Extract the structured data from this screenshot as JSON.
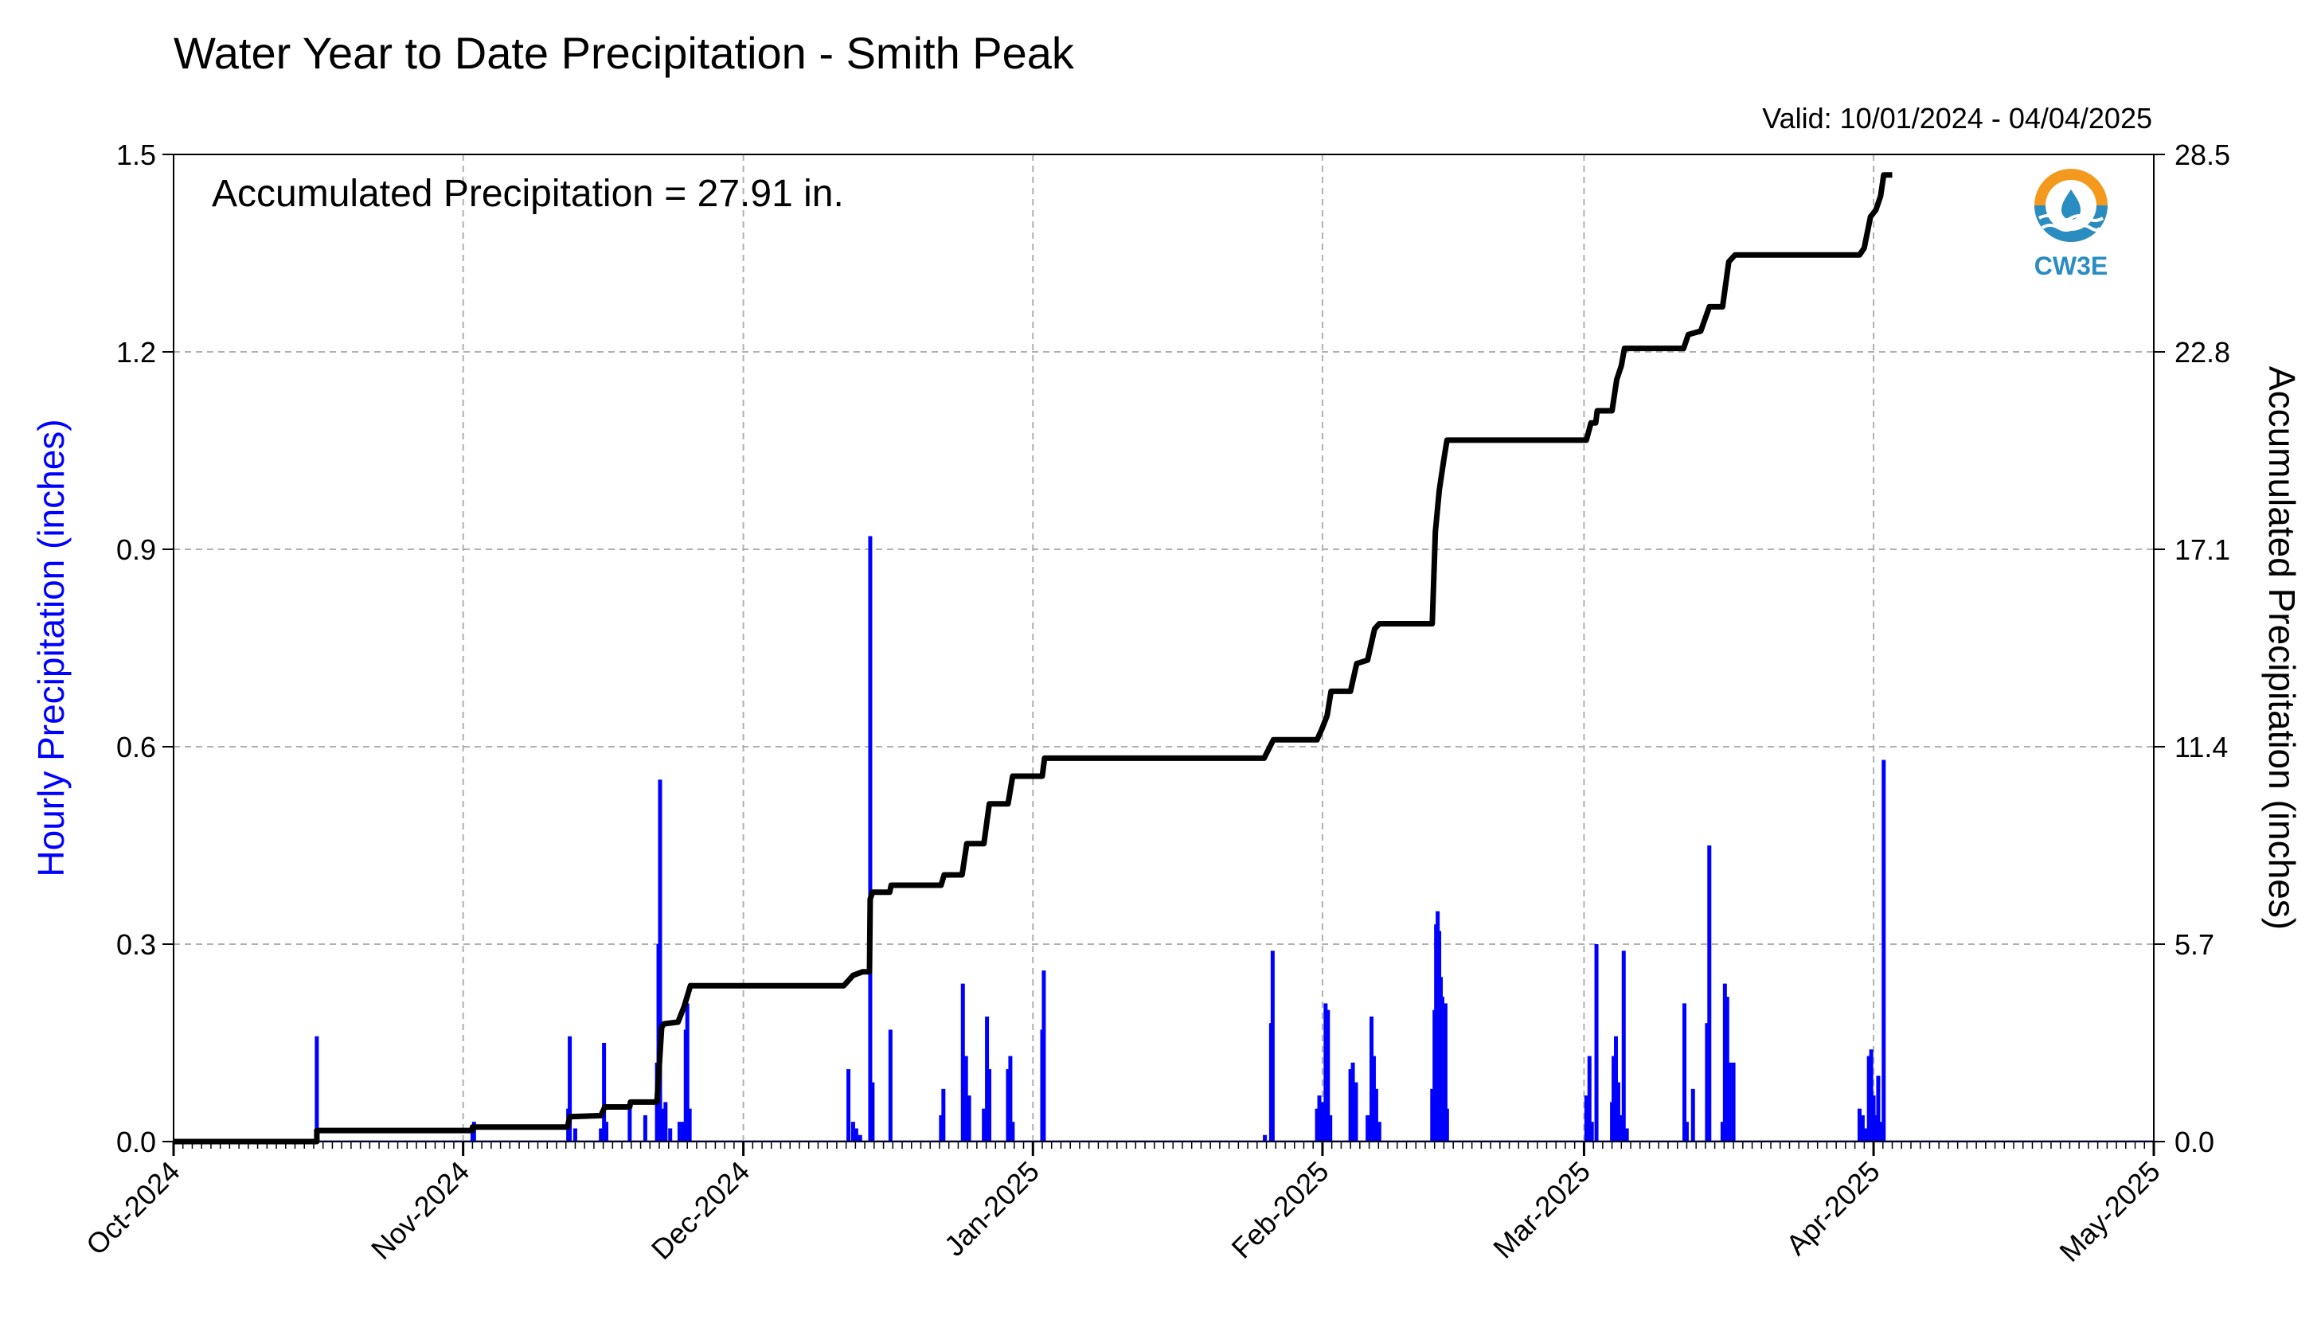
{
  "chart_data": {
    "type": "bar",
    "title": "Water Year to Date Precipitation - Smith Peak",
    "valid_range": "Valid: 10/01/2024 - 04/04/2025",
    "annotation": "Accumulated Precipitation = 27.91 in.",
    "ylabel_left": "Hourly Precipitation (inches)",
    "ylabel_right": "Accumulated Precipitation (inches)",
    "logo_text": "CW3E",
    "ylim_left": [
      0,
      1.5
    ],
    "ylim_right": [
      0,
      28.5
    ],
    "xlim": [
      "2024-10-01",
      "2025-05-01"
    ],
    "left_ticks": [
      "0.0",
      "0.3",
      "0.6",
      "0.9",
      "1.2",
      "1.5"
    ],
    "right_ticks": [
      "0.0",
      "5.7",
      "11.4",
      "17.1",
      "22.8",
      "28.5"
    ],
    "x_ticks": [
      {
        "date": "2024-10-01",
        "label": "Oct-2024"
      },
      {
        "date": "2024-11-01",
        "label": "Nov-2024"
      },
      {
        "date": "2024-12-01",
        "label": "Dec-2024"
      },
      {
        "date": "2025-01-01",
        "label": "Jan-2025"
      },
      {
        "date": "2025-02-01",
        "label": "Feb-2025"
      },
      {
        "date": "2025-03-01",
        "label": "Mar-2025"
      },
      {
        "date": "2025-04-01",
        "label": "Apr-2025"
      },
      {
        "date": "2025-05-01",
        "label": "May-2025"
      }
    ],
    "grid": true,
    "series": [
      {
        "name": "Hourly Precipitation",
        "color": "#0000ff",
        "type": "bar",
        "points": [
          {
            "x": "2024-10-16T08:00",
            "y": 0.16
          },
          {
            "x": "2024-11-02T00:00",
            "y": 0.02
          },
          {
            "x": "2024-11-02T04:00",
            "y": 0.03
          },
          {
            "x": "2024-11-12T06:00",
            "y": 0.05
          },
          {
            "x": "2024-11-12T10:00",
            "y": 0.16
          },
          {
            "x": "2024-11-13T00:00",
            "y": 0.02
          },
          {
            "x": "2024-11-15T18:00",
            "y": 0.02
          },
          {
            "x": "2024-11-16T02:00",
            "y": 0.15
          },
          {
            "x": "2024-11-16T08:00",
            "y": 0.03
          },
          {
            "x": "2024-11-18T20:00",
            "y": 0.05
          },
          {
            "x": "2024-11-20T12:00",
            "y": 0.04
          },
          {
            "x": "2024-11-21T18:00",
            "y": 0.12
          },
          {
            "x": "2024-11-21T22:00",
            "y": 0.3
          },
          {
            "x": "2024-11-22T02:00",
            "y": 0.55
          },
          {
            "x": "2024-11-22T08:00",
            "y": 0.05
          },
          {
            "x": "2024-11-22T16:00",
            "y": 0.06
          },
          {
            "x": "2024-11-23T04:00",
            "y": 0.02
          },
          {
            "x": "2024-11-24T04:00",
            "y": 0.03
          },
          {
            "x": "2024-11-24T14:00",
            "y": 0.03
          },
          {
            "x": "2024-11-24T20:00",
            "y": 0.17
          },
          {
            "x": "2024-11-25T00:00",
            "y": 0.21
          },
          {
            "x": "2024-11-25T06:00",
            "y": 0.05
          },
          {
            "x": "2024-12-12T06:00",
            "y": 0.11
          },
          {
            "x": "2024-12-12T18:00",
            "y": 0.03
          },
          {
            "x": "2024-12-13T02:00",
            "y": 0.02
          },
          {
            "x": "2024-12-13T12:00",
            "y": 0.01
          },
          {
            "x": "2024-12-14T14:00",
            "y": 0.92
          },
          {
            "x": "2024-12-14T20:00",
            "y": 0.09
          },
          {
            "x": "2024-12-16T18:00",
            "y": 0.17
          },
          {
            "x": "2024-12-22T04:00",
            "y": 0.04
          },
          {
            "x": "2024-12-22T10:00",
            "y": 0.08
          },
          {
            "x": "2024-12-24T12:00",
            "y": 0.24
          },
          {
            "x": "2024-12-24T20:00",
            "y": 0.13
          },
          {
            "x": "2024-12-25T04:00",
            "y": 0.07
          },
          {
            "x": "2024-12-26T18:00",
            "y": 0.05
          },
          {
            "x": "2024-12-27T02:00",
            "y": 0.19
          },
          {
            "x": "2024-12-27T08:00",
            "y": 0.11
          },
          {
            "x": "2024-12-29T08:00",
            "y": 0.11
          },
          {
            "x": "2024-12-29T14:00",
            "y": 0.13
          },
          {
            "x": "2024-12-29T20:00",
            "y": 0.03
          },
          {
            "x": "2025-01-02T00:00",
            "y": 0.17
          },
          {
            "x": "2025-01-02T04:00",
            "y": 0.26
          },
          {
            "x": "2025-01-25T20:00",
            "y": 0.01
          },
          {
            "x": "2025-01-26T12:00",
            "y": 0.18
          },
          {
            "x": "2025-01-26T16:00",
            "y": 0.29
          },
          {
            "x": "2025-01-31T10:00",
            "y": 0.05
          },
          {
            "x": "2025-01-31T16:00",
            "y": 0.07
          },
          {
            "x": "2025-02-01T00:00",
            "y": 0.06
          },
          {
            "x": "2025-02-01T08:00",
            "y": 0.21
          },
          {
            "x": "2025-02-01T14:00",
            "y": 0.2
          },
          {
            "x": "2025-02-01T20:00",
            "y": 0.04
          },
          {
            "x": "2025-02-04T00:00",
            "y": 0.11
          },
          {
            "x": "2025-02-04T06:00",
            "y": 0.12
          },
          {
            "x": "2025-02-04T14:00",
            "y": 0.09
          },
          {
            "x": "2025-02-05T20:00",
            "y": 0.04
          },
          {
            "x": "2025-02-06T06:00",
            "y": 0.19
          },
          {
            "x": "2025-02-06T12:00",
            "y": 0.13
          },
          {
            "x": "2025-02-06T18:00",
            "y": 0.08
          },
          {
            "x": "2025-02-07T02:00",
            "y": 0.03
          },
          {
            "x": "2025-02-12T18:00",
            "y": 0.08
          },
          {
            "x": "2025-02-13T00:00",
            "y": 0.2
          },
          {
            "x": "2025-02-13T04:00",
            "y": 0.33
          },
          {
            "x": "2025-02-13T08:00",
            "y": 0.35
          },
          {
            "x": "2025-02-13T12:00",
            "y": 0.32
          },
          {
            "x": "2025-02-13T16:00",
            "y": 0.25
          },
          {
            "x": "2025-02-13T20:00",
            "y": 0.22
          },
          {
            "x": "2025-02-14T00:00",
            "y": 0.12
          },
          {
            "x": "2025-02-14T04:00",
            "y": 0.21
          },
          {
            "x": "2025-02-14T08:00",
            "y": 0.05
          },
          {
            "x": "2025-03-01T06:00",
            "y": 0.07
          },
          {
            "x": "2025-03-01T14:00",
            "y": 0.13
          },
          {
            "x": "2025-03-01T20:00",
            "y": 0.03
          },
          {
            "x": "2025-03-02T08:00",
            "y": 0.3
          },
          {
            "x": "2025-03-04T00:00",
            "y": 0.06
          },
          {
            "x": "2025-03-04T04:00",
            "y": 0.13
          },
          {
            "x": "2025-03-04T10:00",
            "y": 0.16
          },
          {
            "x": "2025-03-04T16:00",
            "y": 0.09
          },
          {
            "x": "2025-03-04T22:00",
            "y": 0.04
          },
          {
            "x": "2025-03-05T06:00",
            "y": 0.29
          },
          {
            "x": "2025-03-05T14:00",
            "y": 0.02
          },
          {
            "x": "2025-03-11T18:00",
            "y": 0.21
          },
          {
            "x": "2025-03-12T00:00",
            "y": 0.03
          },
          {
            "x": "2025-03-12T16:00",
            "y": 0.08
          },
          {
            "x": "2025-03-14T04:00",
            "y": 0.18
          },
          {
            "x": "2025-03-14T10:00",
            "y": 0.45
          },
          {
            "x": "2025-03-15T20:00",
            "y": 0.03
          },
          {
            "x": "2025-03-16T02:00",
            "y": 0.24
          },
          {
            "x": "2025-03-16T08:00",
            "y": 0.22
          },
          {
            "x": "2025-03-16T14:00",
            "y": 0.12
          },
          {
            "x": "2025-03-17T00:00",
            "y": 0.12
          },
          {
            "x": "2025-03-30T12:00",
            "y": 0.05
          },
          {
            "x": "2025-03-30T20:00",
            "y": 0.04
          },
          {
            "x": "2025-03-31T04:00",
            "y": 0.02
          },
          {
            "x": "2025-03-31T12:00",
            "y": 0.13
          },
          {
            "x": "2025-03-31T18:00",
            "y": 0.14
          },
          {
            "x": "2025-04-01T00:00",
            "y": 0.07
          },
          {
            "x": "2025-04-01T06:00",
            "y": 0.04
          },
          {
            "x": "2025-04-01T12:00",
            "y": 0.1
          },
          {
            "x": "2025-04-01T18:00",
            "y": 0.03
          },
          {
            "x": "2025-04-02T02:00",
            "y": 0.58
          }
        ]
      },
      {
        "name": "Accumulated Precipitation",
        "color": "#000000",
        "type": "step-line",
        "points": [
          {
            "x": "2024-10-01T00:00",
            "y": 0.0
          },
          {
            "x": "2024-10-16T08:00",
            "y": 0.0
          },
          {
            "x": "2024-10-16T08:00",
            "y": 0.32
          },
          {
            "x": "2024-11-02T00:00",
            "y": 0.32
          },
          {
            "x": "2024-11-02T00:00",
            "y": 0.42
          },
          {
            "x": "2024-11-12T04:00",
            "y": 0.42
          },
          {
            "x": "2024-11-12T10:00",
            "y": 0.72
          },
          {
            "x": "2024-11-15T18:00",
            "y": 0.75
          },
          {
            "x": "2024-11-16T04:00",
            "y": 1.0
          },
          {
            "x": "2024-11-18T20:00",
            "y": 1.0
          },
          {
            "x": "2024-11-18T22:00",
            "y": 1.14
          },
          {
            "x": "2024-11-21T18:00",
            "y": 1.14
          },
          {
            "x": "2024-11-22T06:00",
            "y": 3.3
          },
          {
            "x": "2024-11-22T12:00",
            "y": 3.4
          },
          {
            "x": "2024-11-24T00:00",
            "y": 3.45
          },
          {
            "x": "2024-11-24T16:00",
            "y": 3.9
          },
          {
            "x": "2024-11-25T08:00",
            "y": 4.5
          },
          {
            "x": "2024-12-11T18:00",
            "y": 4.5
          },
          {
            "x": "2024-12-12T18:00",
            "y": 4.8
          },
          {
            "x": "2024-12-13T18:00",
            "y": 4.9
          },
          {
            "x": "2024-12-14T12:00",
            "y": 4.9
          },
          {
            "x": "2024-12-14T14:00",
            "y": 7.0
          },
          {
            "x": "2024-12-14T20:00",
            "y": 7.2
          },
          {
            "x": "2024-12-16T16:00",
            "y": 7.2
          },
          {
            "x": "2024-12-16T20:00",
            "y": 7.4
          },
          {
            "x": "2024-12-22T04:00",
            "y": 7.4
          },
          {
            "x": "2024-12-22T12:00",
            "y": 7.7
          },
          {
            "x": "2024-12-24T10:00",
            "y": 7.7
          },
          {
            "x": "2024-12-24T22:00",
            "y": 8.6
          },
          {
            "x": "2024-12-26T18:00",
            "y": 8.6
          },
          {
            "x": "2024-12-27T08:00",
            "y": 9.75
          },
          {
            "x": "2024-12-29T08:00",
            "y": 9.75
          },
          {
            "x": "2024-12-29T20:00",
            "y": 10.55
          },
          {
            "x": "2025-01-02T00:00",
            "y": 10.55
          },
          {
            "x": "2025-01-02T06:00",
            "y": 11.07
          },
          {
            "x": "2025-01-25T18:00",
            "y": 11.07
          },
          {
            "x": "2025-01-26T18:00",
            "y": 11.6
          },
          {
            "x": "2025-01-31T10:00",
            "y": 11.6
          },
          {
            "x": "2025-01-31T22:00",
            "y": 11.9
          },
          {
            "x": "2025-02-01T12:00",
            "y": 12.3
          },
          {
            "x": "2025-02-01T22:00",
            "y": 13.0
          },
          {
            "x": "2025-02-04T00:00",
            "y": 13.0
          },
          {
            "x": "2025-02-04T16:00",
            "y": 13.8
          },
          {
            "x": "2025-02-05T20:00",
            "y": 13.9
          },
          {
            "x": "2025-02-06T14:00",
            "y": 14.8
          },
          {
            "x": "2025-02-07T02:00",
            "y": 14.95
          },
          {
            "x": "2025-02-12T18:00",
            "y": 14.95
          },
          {
            "x": "2025-02-13T02:00",
            "y": 17.6
          },
          {
            "x": "2025-02-13T12:00",
            "y": 18.8
          },
          {
            "x": "2025-02-14T00:00",
            "y": 19.7
          },
          {
            "x": "2025-02-14T08:00",
            "y": 20.25
          },
          {
            "x": "2025-03-01T06:00",
            "y": 20.25
          },
          {
            "x": "2025-03-01T18:00",
            "y": 20.75
          },
          {
            "x": "2025-03-02T06:00",
            "y": 20.75
          },
          {
            "x": "2025-03-02T10:00",
            "y": 21.1
          },
          {
            "x": "2025-03-04T00:00",
            "y": 21.1
          },
          {
            "x": "2025-03-04T12:00",
            "y": 22.0
          },
          {
            "x": "2025-03-05T00:00",
            "y": 22.4
          },
          {
            "x": "2025-03-05T08:00",
            "y": 22.9
          },
          {
            "x": "2025-03-11T16:00",
            "y": 22.9
          },
          {
            "x": "2025-03-12T04:00",
            "y": 23.3
          },
          {
            "x": "2025-03-13T12:00",
            "y": 23.4
          },
          {
            "x": "2025-03-14T10:00",
            "y": 24.1
          },
          {
            "x": "2025-03-15T20:00",
            "y": 24.1
          },
          {
            "x": "2025-03-16T12:00",
            "y": 25.4
          },
          {
            "x": "2025-03-17T04:00",
            "y": 25.6
          },
          {
            "x": "2025-03-30T12:00",
            "y": 25.6
          },
          {
            "x": "2025-03-31T00:00",
            "y": 25.8
          },
          {
            "x": "2025-03-31T16:00",
            "y": 26.7
          },
          {
            "x": "2025-04-01T06:00",
            "y": 26.9
          },
          {
            "x": "2025-04-01T18:00",
            "y": 27.3
          },
          {
            "x": "2025-04-02T02:00",
            "y": 27.91
          },
          {
            "x": "2025-04-03T00:00",
            "y": 27.91
          }
        ]
      }
    ]
  }
}
